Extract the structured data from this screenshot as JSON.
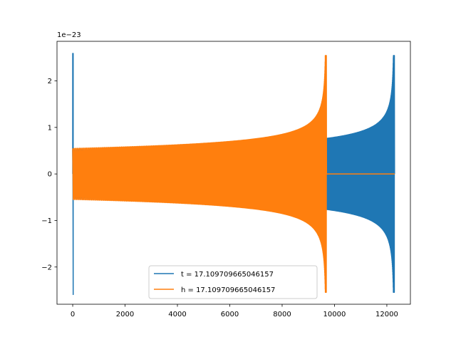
{
  "chart_data": {
    "type": "line",
    "offset_label": "1e−23",
    "xlim": [
      -600,
      12900
    ],
    "ylim": [
      -2.8,
      2.85
    ],
    "x_ticks": [
      0,
      2000,
      4000,
      6000,
      8000,
      10000,
      12000
    ],
    "x_tick_labels": [
      "0",
      "2000",
      "4000",
      "6000",
      "8000",
      "10000",
      "12000"
    ],
    "y_ticks": [
      -2,
      -1,
      0,
      1,
      2
    ],
    "y_tick_labels": [
      "−2",
      "−1",
      "0",
      "1",
      "2"
    ],
    "grid": false,
    "legend_position": "bottom-center",
    "series": [
      {
        "name": "t = 17.109709665046157",
        "color": "#1f77b4",
        "description": "chirp waveform starting at x=0 with initial spike to ±2.6, steady oscillation amplitude growing from about 0.55 to 0.75 near x=9600, then chirp rising to about 2.65 at x=12250, then zero",
        "x_start": 0,
        "x_end": 12300,
        "initial_spike_amplitude": 2.6,
        "start_amplitude": 0.55,
        "peak_amplitude": 2.65,
        "merger_x": 12250
      },
      {
        "name": "h = 17.109709665046157",
        "color": "#ff7f0e",
        "description": "same chirp waveform shifted earlier, peak about 2.65 near x=9650, then flat at zero until x=12300",
        "x_start": 0,
        "x_end": 12300,
        "start_amplitude": 0.55,
        "peak_amplitude": 2.65,
        "merger_x": 9650
      }
    ]
  }
}
